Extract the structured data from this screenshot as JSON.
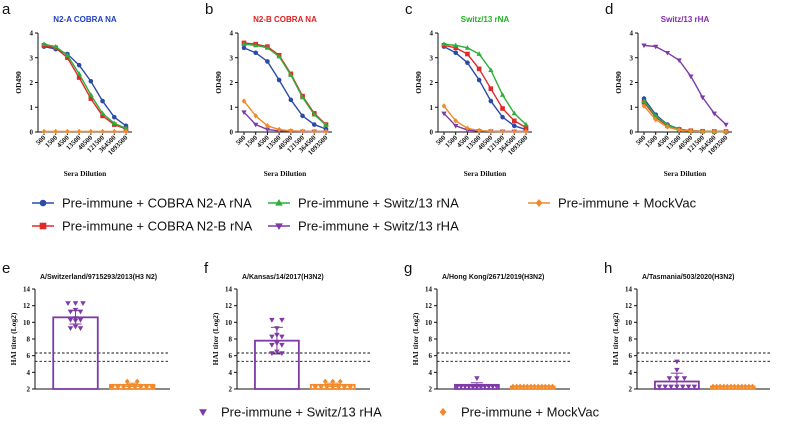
{
  "chart_data": [
    {
      "panel": "a",
      "type": "line",
      "title": "N2-A COBRA NA",
      "title_color": "#1f3fbf",
      "xlabel": "Sera Dilution",
      "ylabel": "OD490",
      "categories": [
        "500",
        "1500",
        "4500",
        "13500",
        "40500",
        "121500",
        "364500",
        "1093500"
      ],
      "ylim": [
        0,
        4
      ],
      "yticks": [
        "0",
        "1",
        "2",
        "3",
        "4"
      ],
      "series": [
        {
          "key": "n2a",
          "values": [
            3.45,
            3.35,
            3.15,
            2.7,
            2.05,
            1.25,
            0.6,
            0.25
          ]
        },
        {
          "key": "n2b",
          "values": [
            3.5,
            3.4,
            3.0,
            2.2,
            1.35,
            0.65,
            0.3,
            0.12
          ]
        },
        {
          "key": "switzna",
          "values": [
            3.55,
            3.45,
            3.1,
            2.35,
            1.5,
            0.75,
            0.35,
            0.15
          ]
        },
        {
          "key": "mock",
          "values": [
            0.02,
            0.02,
            0.02,
            0.02,
            0.02,
            0.02,
            0.02,
            0.02
          ]
        }
      ]
    },
    {
      "panel": "b",
      "type": "line",
      "title": "N2-B COBRA NA",
      "title_color": "#e02020",
      "xlabel": "Sera Dilution",
      "ylabel": "OD490",
      "categories": [
        "500",
        "1500",
        "4500",
        "13500",
        "40500",
        "121500",
        "364500",
        "1093500"
      ],
      "ylim": [
        0,
        4
      ],
      "yticks": [
        "0",
        "1",
        "2",
        "3",
        "4"
      ],
      "series": [
        {
          "key": "n2a",
          "values": [
            3.4,
            3.2,
            2.85,
            2.1,
            1.3,
            0.65,
            0.3,
            0.12
          ]
        },
        {
          "key": "n2b",
          "values": [
            3.6,
            3.55,
            3.45,
            3.1,
            2.35,
            1.45,
            0.75,
            0.3
          ]
        },
        {
          "key": "switzna",
          "values": [
            3.55,
            3.5,
            3.4,
            3.05,
            2.3,
            1.4,
            0.7,
            0.28
          ]
        },
        {
          "key": "switzha",
          "values": [
            0.8,
            0.3,
            0.1,
            0.05,
            0.03,
            0.02,
            0.02,
            0.02
          ]
        },
        {
          "key": "mock",
          "values": [
            1.25,
            0.65,
            0.25,
            0.1,
            0.05,
            0.03,
            0.02,
            0.02
          ]
        }
      ]
    },
    {
      "panel": "c",
      "type": "line",
      "title": "Switz/13 rNA",
      "title_color": "#22b022",
      "xlabel": "Sera Dilution",
      "ylabel": "OD490",
      "categories": [
        "500",
        "1500",
        "4500",
        "13500",
        "40500",
        "121500",
        "364500",
        "1093500"
      ],
      "ylim": [
        0,
        4
      ],
      "yticks": [
        "0",
        "1",
        "2",
        "3",
        "4"
      ],
      "series": [
        {
          "key": "n2a",
          "values": [
            3.45,
            3.2,
            2.8,
            2.1,
            1.25,
            0.6,
            0.25,
            0.1
          ]
        },
        {
          "key": "n2b",
          "values": [
            3.5,
            3.4,
            3.15,
            2.55,
            1.75,
            0.95,
            0.45,
            0.18
          ]
        },
        {
          "key": "switzna",
          "values": [
            3.55,
            3.5,
            3.4,
            3.15,
            2.5,
            1.5,
            0.75,
            0.3
          ]
        },
        {
          "key": "switzha",
          "values": [
            0.75,
            0.25,
            0.08,
            0.04,
            0.03,
            0.02,
            0.02,
            0.02
          ]
        },
        {
          "key": "mock",
          "values": [
            1.05,
            0.45,
            0.15,
            0.06,
            0.03,
            0.02,
            0.02,
            0.02
          ]
        }
      ]
    },
    {
      "panel": "d",
      "type": "line",
      "title": "Switz/13 rHA",
      "title_color": "#8a2aa8",
      "xlabel": "Sera Dilution",
      "ylabel": "OD490",
      "categories": [
        "500",
        "1500",
        "4500",
        "13500",
        "40500",
        "121500",
        "364500",
        "1093500"
      ],
      "ylim": [
        0,
        4
      ],
      "yticks": [
        "0",
        "1",
        "2",
        "3",
        "4"
      ],
      "series": [
        {
          "key": "switzha",
          "values": [
            3.5,
            3.45,
            3.2,
            2.9,
            2.25,
            1.4,
            0.75,
            0.3
          ]
        },
        {
          "key": "n2a",
          "values": [
            1.35,
            0.7,
            0.3,
            0.12,
            0.05,
            0.03,
            0.02,
            0.02
          ]
        },
        {
          "key": "n2b",
          "values": [
            1.2,
            0.6,
            0.25,
            0.1,
            0.05,
            0.03,
            0.02,
            0.02
          ]
        },
        {
          "key": "switzna",
          "values": [
            1.25,
            0.65,
            0.28,
            0.11,
            0.05,
            0.03,
            0.02,
            0.02
          ]
        },
        {
          "key": "mock",
          "values": [
            1.05,
            0.5,
            0.2,
            0.08,
            0.04,
            0.02,
            0.02,
            0.02
          ]
        }
      ]
    },
    {
      "panel": "e",
      "type": "bar",
      "title": "A/Switzerland/9715293/2013(H3 N2)",
      "ylabel": "HAI titer (Log2)",
      "ylim": [
        2,
        14
      ],
      "yticks": [
        "2",
        "4",
        "6",
        "8",
        "10",
        "12",
        "14"
      ],
      "threshold_lines": [
        5.32,
        6.32
      ],
      "bars": [
        {
          "key": "switzha",
          "mean": 10.6,
          "sd": 0.8,
          "points": [
            12.3,
            12.3,
            12.3,
            11.5,
            11.3,
            11.3,
            10.5,
            10.3,
            10.3,
            10.2,
            9.5,
            9.3,
            9.3
          ]
        },
        {
          "key": "mock",
          "mean": 2.5,
          "sd": 0.2,
          "points": [
            2.9,
            2.9,
            2.3,
            2.3,
            2.3,
            2.3,
            2.3,
            2.3,
            2.3,
            2.3
          ]
        }
      ]
    },
    {
      "panel": "f",
      "type": "bar",
      "title": "A/Kansas/14/2017(H3N2)",
      "ylabel": "HAI titer (Log2)",
      "ylim": [
        2,
        14
      ],
      "yticks": [
        "2",
        "4",
        "6",
        "8",
        "10",
        "12",
        "14"
      ],
      "threshold_lines": [
        5.32,
        6.32
      ],
      "bars": [
        {
          "key": "switzha",
          "mean": 7.8,
          "sd": 1.6,
          "points": [
            10.3,
            10.3,
            9.3,
            8.5,
            8.3,
            8.3,
            7.5,
            7.3,
            7.3,
            6.5,
            6.3,
            6.3
          ]
        },
        {
          "key": "mock",
          "mean": 2.5,
          "sd": 0.2,
          "points": [
            2.9,
            2.9,
            2.9,
            2.3,
            2.3,
            2.3,
            2.3,
            2.3,
            2.3,
            2.3
          ]
        }
      ]
    },
    {
      "panel": "g",
      "type": "bar",
      "title": "A/Hong Kong/2671/2019(H3N2)",
      "ylabel": "HAI titer (Log2)",
      "ylim": [
        2,
        14
      ],
      "yticks": [
        "2",
        "4",
        "6",
        "8",
        "10",
        "12",
        "14"
      ],
      "threshold_lines": [
        5.32,
        6.32
      ],
      "bars": [
        {
          "key": "switzha",
          "mean": 2.5,
          "sd": 0.25,
          "points": [
            3.3,
            2.3,
            2.3,
            2.3,
            2.3,
            2.3,
            2.3,
            2.3,
            2.3,
            2.3,
            2.3,
            2.3
          ]
        },
        {
          "key": "mock",
          "mean": 2.3,
          "sd": 0.0,
          "points": [
            2.3,
            2.3,
            2.3,
            2.3,
            2.3,
            2.3,
            2.3,
            2.3,
            2.3,
            2.3,
            2.3,
            2.3
          ]
        }
      ]
    },
    {
      "panel": "h",
      "type": "bar",
      "title": "A/Tasmania/503/2020(H3N2)",
      "ylabel": "HAI titer (Log2)",
      "ylim": [
        2,
        14
      ],
      "yticks": [
        "2",
        "4",
        "6",
        "8",
        "10",
        "12",
        "14"
      ],
      "threshold_lines": [
        5.32,
        6.32
      ],
      "bars": [
        {
          "key": "switzha",
          "mean": 2.9,
          "sd": 1.0,
          "points": [
            5.3,
            4.3,
            3.3,
            3.3,
            3.3,
            2.3,
            2.3,
            2.3,
            2.3,
            2.3,
            2.3,
            2.3
          ]
        },
        {
          "key": "mock",
          "mean": 2.3,
          "sd": 0.0,
          "points": [
            2.3,
            2.3,
            2.3,
            2.3,
            2.3,
            2.3,
            2.3,
            2.3,
            2.3,
            2.3,
            2.3,
            2.3
          ]
        }
      ]
    }
  ],
  "series_styles": {
    "n2a": {
      "color": "#2b4ba8",
      "marker": "circle"
    },
    "n2b": {
      "color": "#e02a2a",
      "marker": "square"
    },
    "switzna": {
      "color": "#2fae3a",
      "marker": "triangle-up"
    },
    "switzha": {
      "color": "#7e3aa6",
      "marker": "triangle-down"
    },
    "mock": {
      "color": "#f08a2c",
      "marker": "diamond"
    }
  },
  "legend_top": [
    {
      "key": "n2a",
      "label": "Pre-immune + COBRA N2-A rNA"
    },
    {
      "key": "switzna",
      "label": "Pre-immune + Switz/13 rNA"
    },
    {
      "key": "mock",
      "label": "Pre-immune + MockVac"
    },
    {
      "key": "n2b",
      "label": "Pre-immune + COBRA N2-B rNA"
    },
    {
      "key": "switzha",
      "label": "Pre-immune + Switz/13 rHA"
    }
  ],
  "legend_bottom": [
    {
      "key": "switzha",
      "label": "Pre-immune + Switz/13 rHA"
    },
    {
      "key": "mock",
      "label": "Pre-immune + MockVac"
    }
  ]
}
